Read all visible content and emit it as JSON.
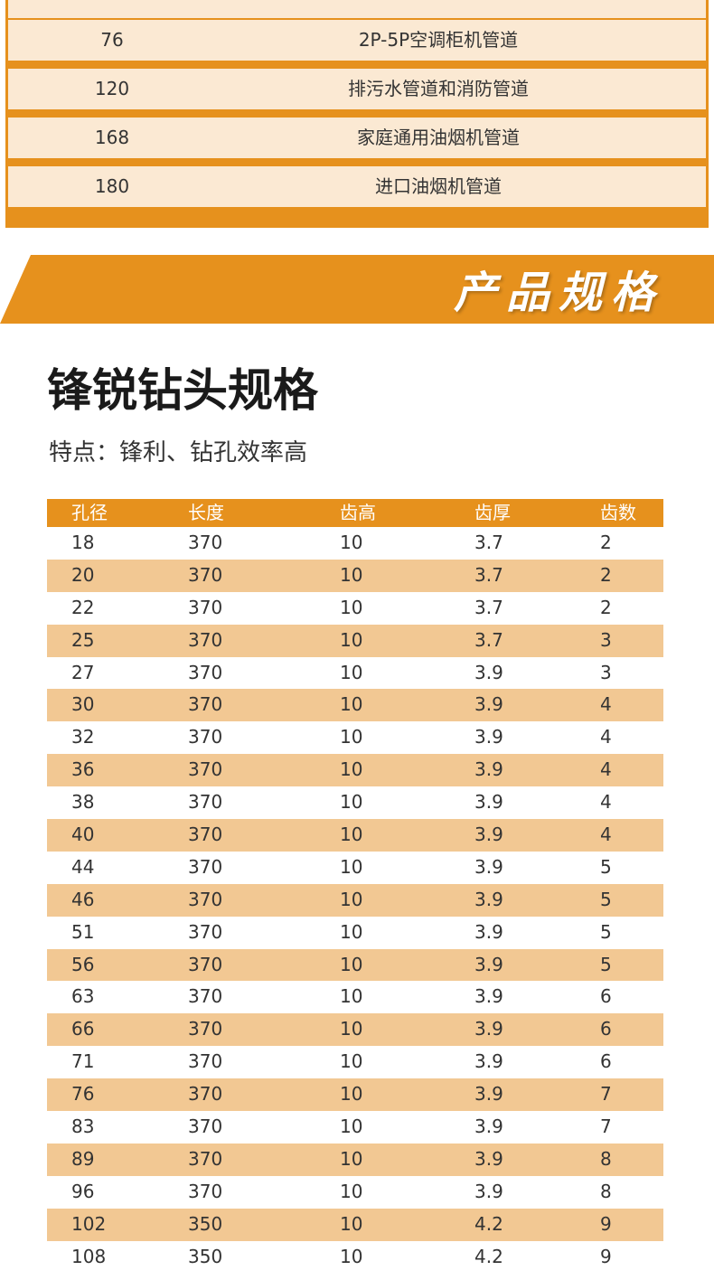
{
  "usage_table": {
    "rows": [
      {
        "size": "76",
        "usage": "2P-5P空调柜机管道"
      },
      {
        "size": "120",
        "usage": "排污水管道和消防管道"
      },
      {
        "size": "168",
        "usage": "家庭通用油烟机管道"
      },
      {
        "size": "180",
        "usage": "进口油烟机管道"
      }
    ]
  },
  "banner": {
    "title": "产品规格"
  },
  "section": {
    "title": "锋锐钻头规格",
    "subtitle": "特点：锋利、钻孔效率高"
  },
  "spec_table": {
    "headers": [
      "孔径",
      "长度",
      "齿高",
      "齿厚",
      "齿数"
    ],
    "rows": [
      [
        "18",
        "370",
        "10",
        "3.7",
        "2"
      ],
      [
        "20",
        "370",
        "10",
        "3.7",
        "2"
      ],
      [
        "22",
        "370",
        "10",
        "3.7",
        "2"
      ],
      [
        "25",
        "370",
        "10",
        "3.7",
        "3"
      ],
      [
        "27",
        "370",
        "10",
        "3.9",
        "3"
      ],
      [
        "30",
        "370",
        "10",
        "3.9",
        "4"
      ],
      [
        "32",
        "370",
        "10",
        "3.9",
        "4"
      ],
      [
        "36",
        "370",
        "10",
        "3.9",
        "4"
      ],
      [
        "38",
        "370",
        "10",
        "3.9",
        "4"
      ],
      [
        "40",
        "370",
        "10",
        "3.9",
        "4"
      ],
      [
        "44",
        "370",
        "10",
        "3.9",
        "5"
      ],
      [
        "46",
        "370",
        "10",
        "3.9",
        "5"
      ],
      [
        "51",
        "370",
        "10",
        "3.9",
        "5"
      ],
      [
        "56",
        "370",
        "10",
        "3.9",
        "5"
      ],
      [
        "63",
        "370",
        "10",
        "3.9",
        "6"
      ],
      [
        "66",
        "370",
        "10",
        "3.9",
        "6"
      ],
      [
        "71",
        "370",
        "10",
        "3.9",
        "6"
      ],
      [
        "76",
        "370",
        "10",
        "3.9",
        "7"
      ],
      [
        "83",
        "370",
        "10",
        "3.9",
        "7"
      ],
      [
        "89",
        "370",
        "10",
        "3.9",
        "8"
      ],
      [
        "96",
        "370",
        "10",
        "3.9",
        "8"
      ],
      [
        "102",
        "350",
        "10",
        "4.2",
        "9"
      ],
      [
        "108",
        "350",
        "10",
        "4.2",
        "9"
      ]
    ]
  },
  "colors": {
    "accent": "#e6911d",
    "row_light": "#fbe9d3",
    "row_alt": "#f2c893"
  }
}
